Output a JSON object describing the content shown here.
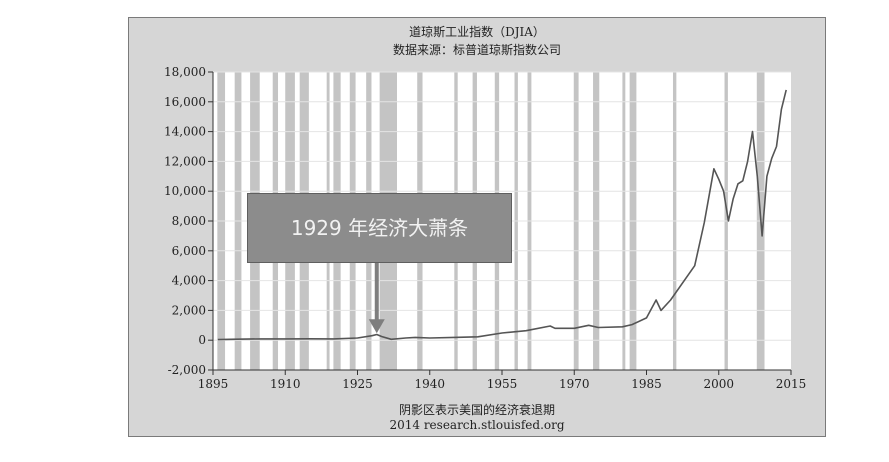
{
  "chart_data": {
    "type": "line",
    "title": "道琼斯工业指数（DJIA）",
    "subtitle": "数据来源：标普道琼斯指数公司",
    "footnote": "阴影区表示美国的经济衰退期",
    "source": "2014 research.stlouisfed.org",
    "annotation": "1929 年经济大萧条",
    "annotation_year": 1929,
    "xlim": [
      1895,
      2015
    ],
    "ylim": [
      -2000,
      18000
    ],
    "x_ticks": [
      1895,
      1910,
      1925,
      1940,
      1955,
      1970,
      1985,
      2000,
      2015
    ],
    "y_ticks": [
      -2000,
      0,
      2000,
      4000,
      6000,
      8000,
      10000,
      12000,
      14000,
      16000,
      18000
    ],
    "y_tick_labels": [
      "-2,000",
      "0",
      "2,000",
      "4,000",
      "6,000",
      "8,000",
      "10,000",
      "12,000",
      "14,000",
      "16,000",
      "18,000"
    ],
    "series": [
      {
        "x": [
          1896,
          1900,
          1905,
          1910,
          1915,
          1920,
          1925,
          1928,
          1929,
          1930,
          1932,
          1935,
          1937,
          1940,
          1945,
          1950,
          1955,
          1960,
          1965,
          1966,
          1970,
          1973,
          1975,
          1980,
          1982,
          1985,
          1987,
          1988,
          1990,
          1995,
          1997,
          1999,
          2000,
          2001,
          2002,
          2003,
          2004,
          2005,
          2006,
          2007,
          2008,
          2009,
          2010,
          2011,
          2012,
          2013,
          2014
        ],
        "y": [
          40,
          70,
          90,
          90,
          95,
          90,
          150,
          300,
          381,
          250,
          60,
          150,
          190,
          150,
          190,
          230,
          480,
          640,
          950,
          800,
          800,
          1000,
          850,
          900,
          1050,
          1500,
          2700,
          2000,
          2700,
          5000,
          7900,
          11500,
          10800,
          10000,
          8000,
          9500,
          10500,
          10700,
          12000,
          14000,
          11000,
          7000,
          11000,
          12200,
          13000,
          15500,
          16800
        ]
      }
    ],
    "recessions": [
      [
        1895.9,
        1897.5
      ],
      [
        1899.5,
        1900.9
      ],
      [
        1902.7,
        1904.7
      ],
      [
        1907.4,
        1908.5
      ],
      [
        1910.0,
        1912.0
      ],
      [
        1913.0,
        1914.9
      ],
      [
        1918.6,
        1919.2
      ],
      [
        1920.0,
        1921.5
      ],
      [
        1923.4,
        1924.6
      ],
      [
        1926.8,
        1927.9
      ],
      [
        1929.6,
        1933.2
      ],
      [
        1937.4,
        1938.5
      ],
      [
        1945.1,
        1945.8
      ],
      [
        1948.9,
        1949.8
      ],
      [
        1953.5,
        1954.4
      ],
      [
        1957.6,
        1958.3
      ],
      [
        1960.3,
        1961.1
      ],
      [
        1969.9,
        1970.9
      ],
      [
        1973.9,
        1975.2
      ],
      [
        1980.0,
        1980.6
      ],
      [
        1981.5,
        1982.9
      ],
      [
        1990.5,
        1991.2
      ],
      [
        2001.2,
        2001.9
      ],
      [
        2007.9,
        2009.5
      ]
    ]
  }
}
